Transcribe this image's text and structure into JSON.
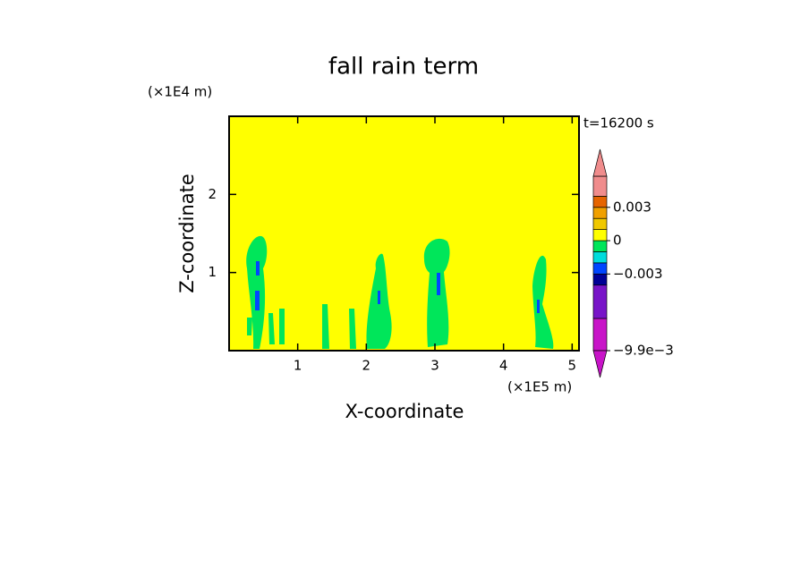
{
  "chart_data": {
    "type": "contour",
    "title": "fall rain term",
    "x_label": "X-coordinate",
    "y_label": "Z-coordinate",
    "x_unit": "(×1E5 m)",
    "y_unit": "(×1E4 m)",
    "annotation": "t=16200 s",
    "xlim": [
      0,
      5.1
    ],
    "ylim": [
      0,
      3
    ],
    "xticks": [
      1,
      2,
      3,
      4,
      5
    ],
    "yticks": [
      1,
      2
    ],
    "background_color": "#ffff00",
    "colorbar": {
      "bounds": [
        -0.0099,
        -0.007,
        -0.004,
        -0.003,
        -0.002,
        -0.001,
        0,
        0.001,
        0.002,
        0.003,
        0.004,
        0.0058
      ],
      "colors": [
        "#c814c8",
        "#7814c8",
        "#000096",
        "#0046ff",
        "#00dcdc",
        "#00e65a",
        "#ffff00",
        "#f0c800",
        "#f0a000",
        "#e66400",
        "#f08c8c"
      ],
      "ticks": [
        {
          "value": -0.0099,
          "label": "−9.9e−3"
        },
        {
          "value": -0.003,
          "label": "−0.003"
        },
        0,
        0.003
      ]
    }
  }
}
